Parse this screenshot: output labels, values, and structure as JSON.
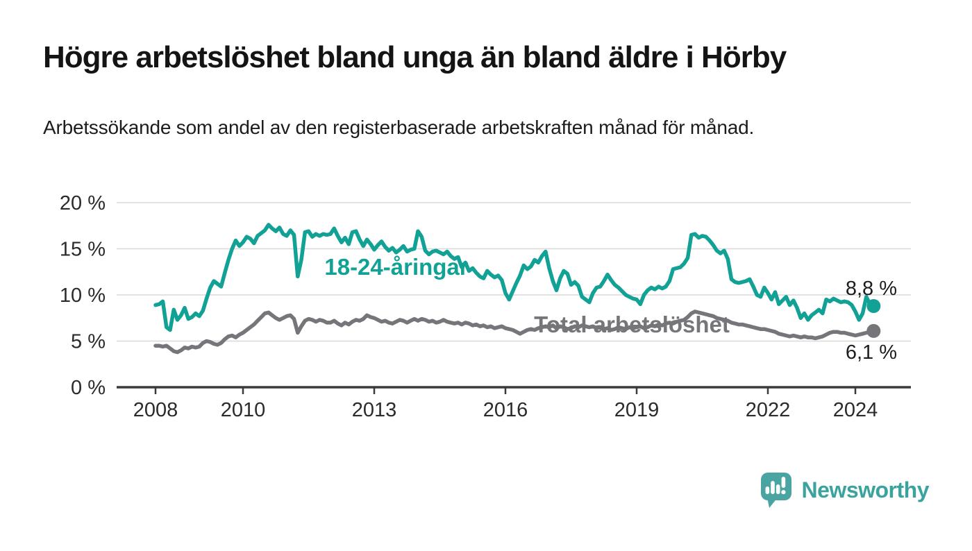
{
  "header": {
    "title": "Högre arbetslöshet bland unga än bland äldre i Hörby",
    "subtitle": "Arbetssökande som andel av den registerbaserade arbetskraften månad för månad."
  },
  "footer": {
    "brand": "Newsworthy"
  },
  "colors": {
    "youth": "#12a195",
    "total": "#75757a",
    "axis": "#3b3b3b",
    "grid": "#d8d8d8",
    "tick_text": "#2b2b2b",
    "end_label_text": "#1d1d1d",
    "logo_bubble": "#4aa5a2",
    "logo_text": "#3aa39e"
  },
  "chart_data": {
    "type": "line",
    "title": "Högre arbetslöshet bland unga än bland äldre i Hörby",
    "xlabel": "",
    "ylabel": "Arbetssökande som andel av den registerbaserade arbetskraften",
    "x_start_year": 2008,
    "points_per_year": 12,
    "x_tick_years": [
      2008,
      2010,
      2013,
      2016,
      2019,
      2022,
      2024
    ],
    "y_ticks": [
      0,
      5,
      10,
      15,
      20
    ],
    "y_tick_suffix": " %",
    "ylim": [
      0,
      20
    ],
    "grid": true,
    "legend_position": "inline-labels",
    "series": [
      {
        "name": "18-24-åringar",
        "color": "#12a195",
        "end_value": 8.8,
        "end_label": "8,8 %",
        "values": [
          8.9,
          9.0,
          9.3,
          6.5,
          6.2,
          8.4,
          7.3,
          7.8,
          8.6,
          7.4,
          7.6,
          8.0,
          7.7,
          8.3,
          9.6,
          10.8,
          11.5,
          11.2,
          10.9,
          12.4,
          13.8,
          15.0,
          15.9,
          15.3,
          15.7,
          16.3,
          16.1,
          15.6,
          16.4,
          16.7,
          17.0,
          17.6,
          17.2,
          16.9,
          17.3,
          16.6,
          16.4,
          17.0,
          16.5,
          12.0,
          13.8,
          16.8,
          16.9,
          16.3,
          16.6,
          16.4,
          16.6,
          16.5,
          16.6,
          17.2,
          16.4,
          15.7,
          16.2,
          15.5,
          16.8,
          16.9,
          16.0,
          15.3,
          16.0,
          15.5,
          14.9,
          15.4,
          15.8,
          15.2,
          14.8,
          15.1,
          14.6,
          14.9,
          15.3,
          14.7,
          14.9,
          15.0,
          16.9,
          16.3,
          14.8,
          14.4,
          14.7,
          14.8,
          14.6,
          14.4,
          14.7,
          14.2,
          13.9,
          14.1,
          13.0,
          13.5,
          12.6,
          12.9,
          12.4,
          12.0,
          11.8,
          12.6,
          12.2,
          11.9,
          12.1,
          11.6,
          10.2,
          9.5,
          10.4,
          11.3,
          12.1,
          13.2,
          12.8,
          13.1,
          13.8,
          13.5,
          14.2,
          14.7,
          12.9,
          11.5,
          10.5,
          11.8,
          12.6,
          12.3,
          11.1,
          11.4,
          11.0,
          9.8,
          9.5,
          9.2,
          10.2,
          10.8,
          10.9,
          11.5,
          12.2,
          11.6,
          11.1,
          10.8,
          10.4,
          10.0,
          9.8,
          9.6,
          9.5,
          9.0,
          10.0,
          10.5,
          10.8,
          10.6,
          10.9,
          10.7,
          10.9,
          11.5,
          12.8,
          12.9,
          13.0,
          13.4,
          14.0,
          16.5,
          16.6,
          16.2,
          16.4,
          16.3,
          15.9,
          15.4,
          14.8,
          14.5,
          14.8,
          13.9,
          11.7,
          11.4,
          11.3,
          11.4,
          11.5,
          11.7,
          10.9,
          10.0,
          9.8,
          10.8,
          10.2,
          9.5,
          10.3,
          9.0,
          9.4,
          9.8,
          8.9,
          9.4,
          8.6,
          7.5,
          8.0,
          7.3,
          7.8,
          8.1,
          8.4,
          8.0,
          9.5,
          9.3,
          9.6,
          9.4,
          9.2,
          9.3,
          9.2,
          8.9,
          8.2,
          7.3,
          8.0,
          9.8,
          9.0,
          8.8
        ]
      },
      {
        "name": "Total arbetslöshet",
        "color": "#75757a",
        "end_value": 6.1,
        "end_label": "6,1 %",
        "values": [
          4.5,
          4.5,
          4.4,
          4.5,
          4.2,
          3.9,
          3.8,
          4.0,
          4.3,
          4.2,
          4.4,
          4.3,
          4.4,
          4.8,
          5.0,
          4.9,
          4.7,
          4.6,
          4.8,
          5.2,
          5.5,
          5.6,
          5.4,
          5.7,
          5.9,
          6.2,
          6.5,
          6.8,
          7.2,
          7.6,
          8.0,
          8.1,
          7.8,
          7.5,
          7.3,
          7.5,
          7.7,
          7.8,
          7.4,
          5.9,
          6.6,
          7.2,
          7.4,
          7.3,
          7.1,
          7.3,
          7.2,
          7.0,
          7.0,
          7.2,
          6.9,
          6.7,
          7.0,
          6.8,
          7.1,
          7.3,
          7.2,
          7.4,
          7.8,
          7.6,
          7.5,
          7.3,
          7.1,
          7.2,
          7.0,
          6.9,
          7.1,
          7.3,
          7.2,
          7.0,
          7.2,
          7.4,
          7.2,
          7.4,
          7.3,
          7.1,
          7.2,
          7.0,
          7.1,
          7.3,
          7.1,
          7.0,
          6.9,
          7.0,
          6.8,
          7.0,
          6.9,
          6.7,
          6.8,
          6.6,
          6.7,
          6.5,
          6.6,
          6.4,
          6.5,
          6.6,
          6.4,
          6.3,
          6.2,
          6.0,
          5.8,
          6.0,
          6.2,
          6.3,
          6.2,
          6.4,
          6.5,
          6.6,
          6.5,
          6.7,
          6.4,
          6.6,
          6.5,
          6.3,
          6.4,
          6.6,
          6.5,
          6.7,
          6.6,
          6.5,
          6.6,
          6.4,
          6.5,
          6.3,
          6.4,
          6.2,
          6.3,
          6.5,
          6.4,
          6.3,
          6.5,
          6.4,
          6.5,
          6.6,
          6.4,
          6.5,
          6.7,
          6.6,
          6.8,
          6.7,
          6.9,
          7.0,
          6.9,
          7.1,
          7.2,
          7.3,
          7.6,
          8.0,
          8.2,
          8.1,
          8.0,
          7.9,
          7.8,
          7.7,
          7.5,
          7.4,
          7.3,
          7.2,
          7.0,
          6.9,
          6.8,
          6.8,
          6.7,
          6.6,
          6.5,
          6.4,
          6.3,
          6.3,
          6.2,
          6.1,
          6.0,
          5.8,
          5.7,
          5.6,
          5.5,
          5.6,
          5.5,
          5.4,
          5.5,
          5.4,
          5.4,
          5.3,
          5.4,
          5.5,
          5.7,
          5.9,
          6.0,
          6.0,
          5.9,
          5.9,
          5.8,
          5.7,
          5.6,
          5.7,
          5.8,
          5.9,
          6.0,
          6.1
        ]
      }
    ]
  }
}
